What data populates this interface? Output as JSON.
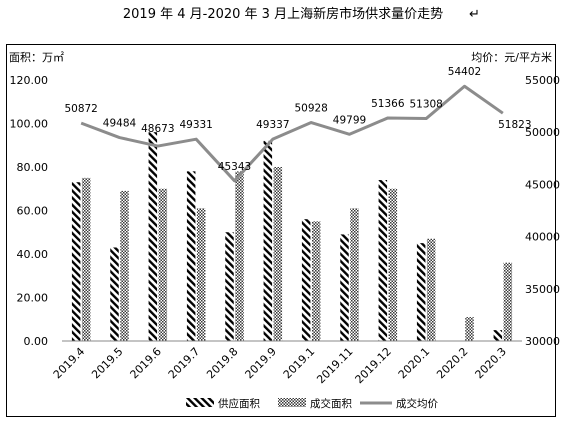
{
  "chart_data": {
    "type": "bar",
    "title": "2019 年 4 月-2020 年 3 月上海新房市场供求量价走势",
    "title_mark": "↵",
    "left_axis_label": "面积：万㎡",
    "right_axis_label": "均价：元/平方米",
    "categories": [
      "2019.4",
      "2019.5",
      "2019.6",
      "2019.7",
      "2019.8",
      "2019.9",
      "2019.1",
      "2019.11",
      "2019.12",
      "2020.1",
      "2020.2",
      "2020.3"
    ],
    "series": [
      {
        "name": "供应面积",
        "kind": "bar",
        "axis": "left",
        "values": [
          73,
          43,
          96,
          78,
          50,
          92,
          56,
          49,
          74,
          45,
          0,
          5
        ]
      },
      {
        "name": "成交面积",
        "kind": "bar",
        "axis": "left",
        "values": [
          75,
          69,
          70,
          61,
          78,
          80,
          55,
          61,
          70,
          47,
          11,
          36
        ]
      },
      {
        "name": "成交均价",
        "kind": "line",
        "axis": "right",
        "values": [
          50872,
          49484,
          48673,
          49331,
          45343,
          49337,
          50928,
          49799,
          51366,
          51308,
          54402,
          51823
        ],
        "labels": [
          "50872",
          "49484",
          "48673",
          "49331",
          "45343",
          "49337",
          "50928",
          "49799",
          "51366",
          "51308",
          "54402",
          "51823"
        ]
      }
    ],
    "y_left": {
      "min": 0,
      "max": 120,
      "ticks": [
        "0.00",
        "20.00",
        "40.00",
        "60.00",
        "80.00",
        "100.00",
        "120.00"
      ]
    },
    "y_right": {
      "min": 30000,
      "max": 55000,
      "ticks": [
        "30000",
        "35000",
        "40000",
        "45000",
        "50000",
        "55000"
      ]
    },
    "grid": false,
    "legend_position": "bottom",
    "colors": {
      "supply": "#000000",
      "deal": "#555555",
      "line": "#8c8c8c",
      "axis": "#888888"
    }
  }
}
